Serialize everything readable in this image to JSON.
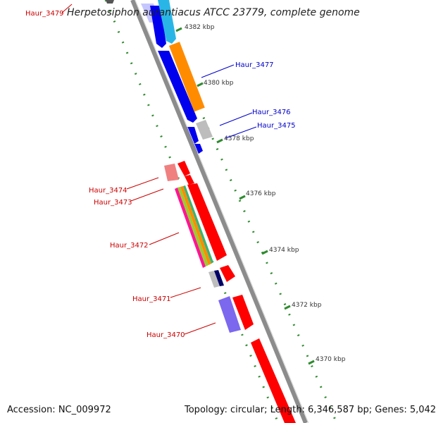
{
  "title": "Herpetosiphon aurantiacus ATCC 23779, complete genome",
  "footer": {
    "accession": "Accession: NC_009972",
    "topology": "Topology: circular; Length: 6,346,587 bp; Genes: 5,042"
  },
  "ticks": [
    "4382 kbp",
    "4380 kbp",
    "4378 kbp",
    "4376 kbp",
    "4374 kbp",
    "4372 kbp",
    "4370 kbp"
  ],
  "gene_labels": [
    {
      "text": "Haur_3479",
      "color": "#cc0000"
    },
    {
      "text": "Haur_3477",
      "color": "#0000cc"
    },
    {
      "text": "Haur_3476",
      "color": "#0000cc"
    },
    {
      "text": "Haur_3475",
      "color": "#0000cc"
    },
    {
      "text": "Haur_3474",
      "color": "#cc0000"
    },
    {
      "text": "Haur_3473",
      "color": "#cc0000"
    },
    {
      "text": "Haur_3472",
      "color": "#cc0000"
    },
    {
      "text": "Haur_3471",
      "color": "#cc0000"
    },
    {
      "text": "Haur_3470",
      "color": "#cc0000"
    }
  ],
  "colors": {
    "backbone": "#8c8c8c",
    "tick": "#2e8b2e",
    "forward": "#ff0000",
    "reverse": "#0000ee",
    "orange": "#ff8c00",
    "cyan": "#29b6e6",
    "grey": "#bdbdbd",
    "pink": "#f08080",
    "purple": "#7b68ee",
    "navy": "#000066"
  }
}
